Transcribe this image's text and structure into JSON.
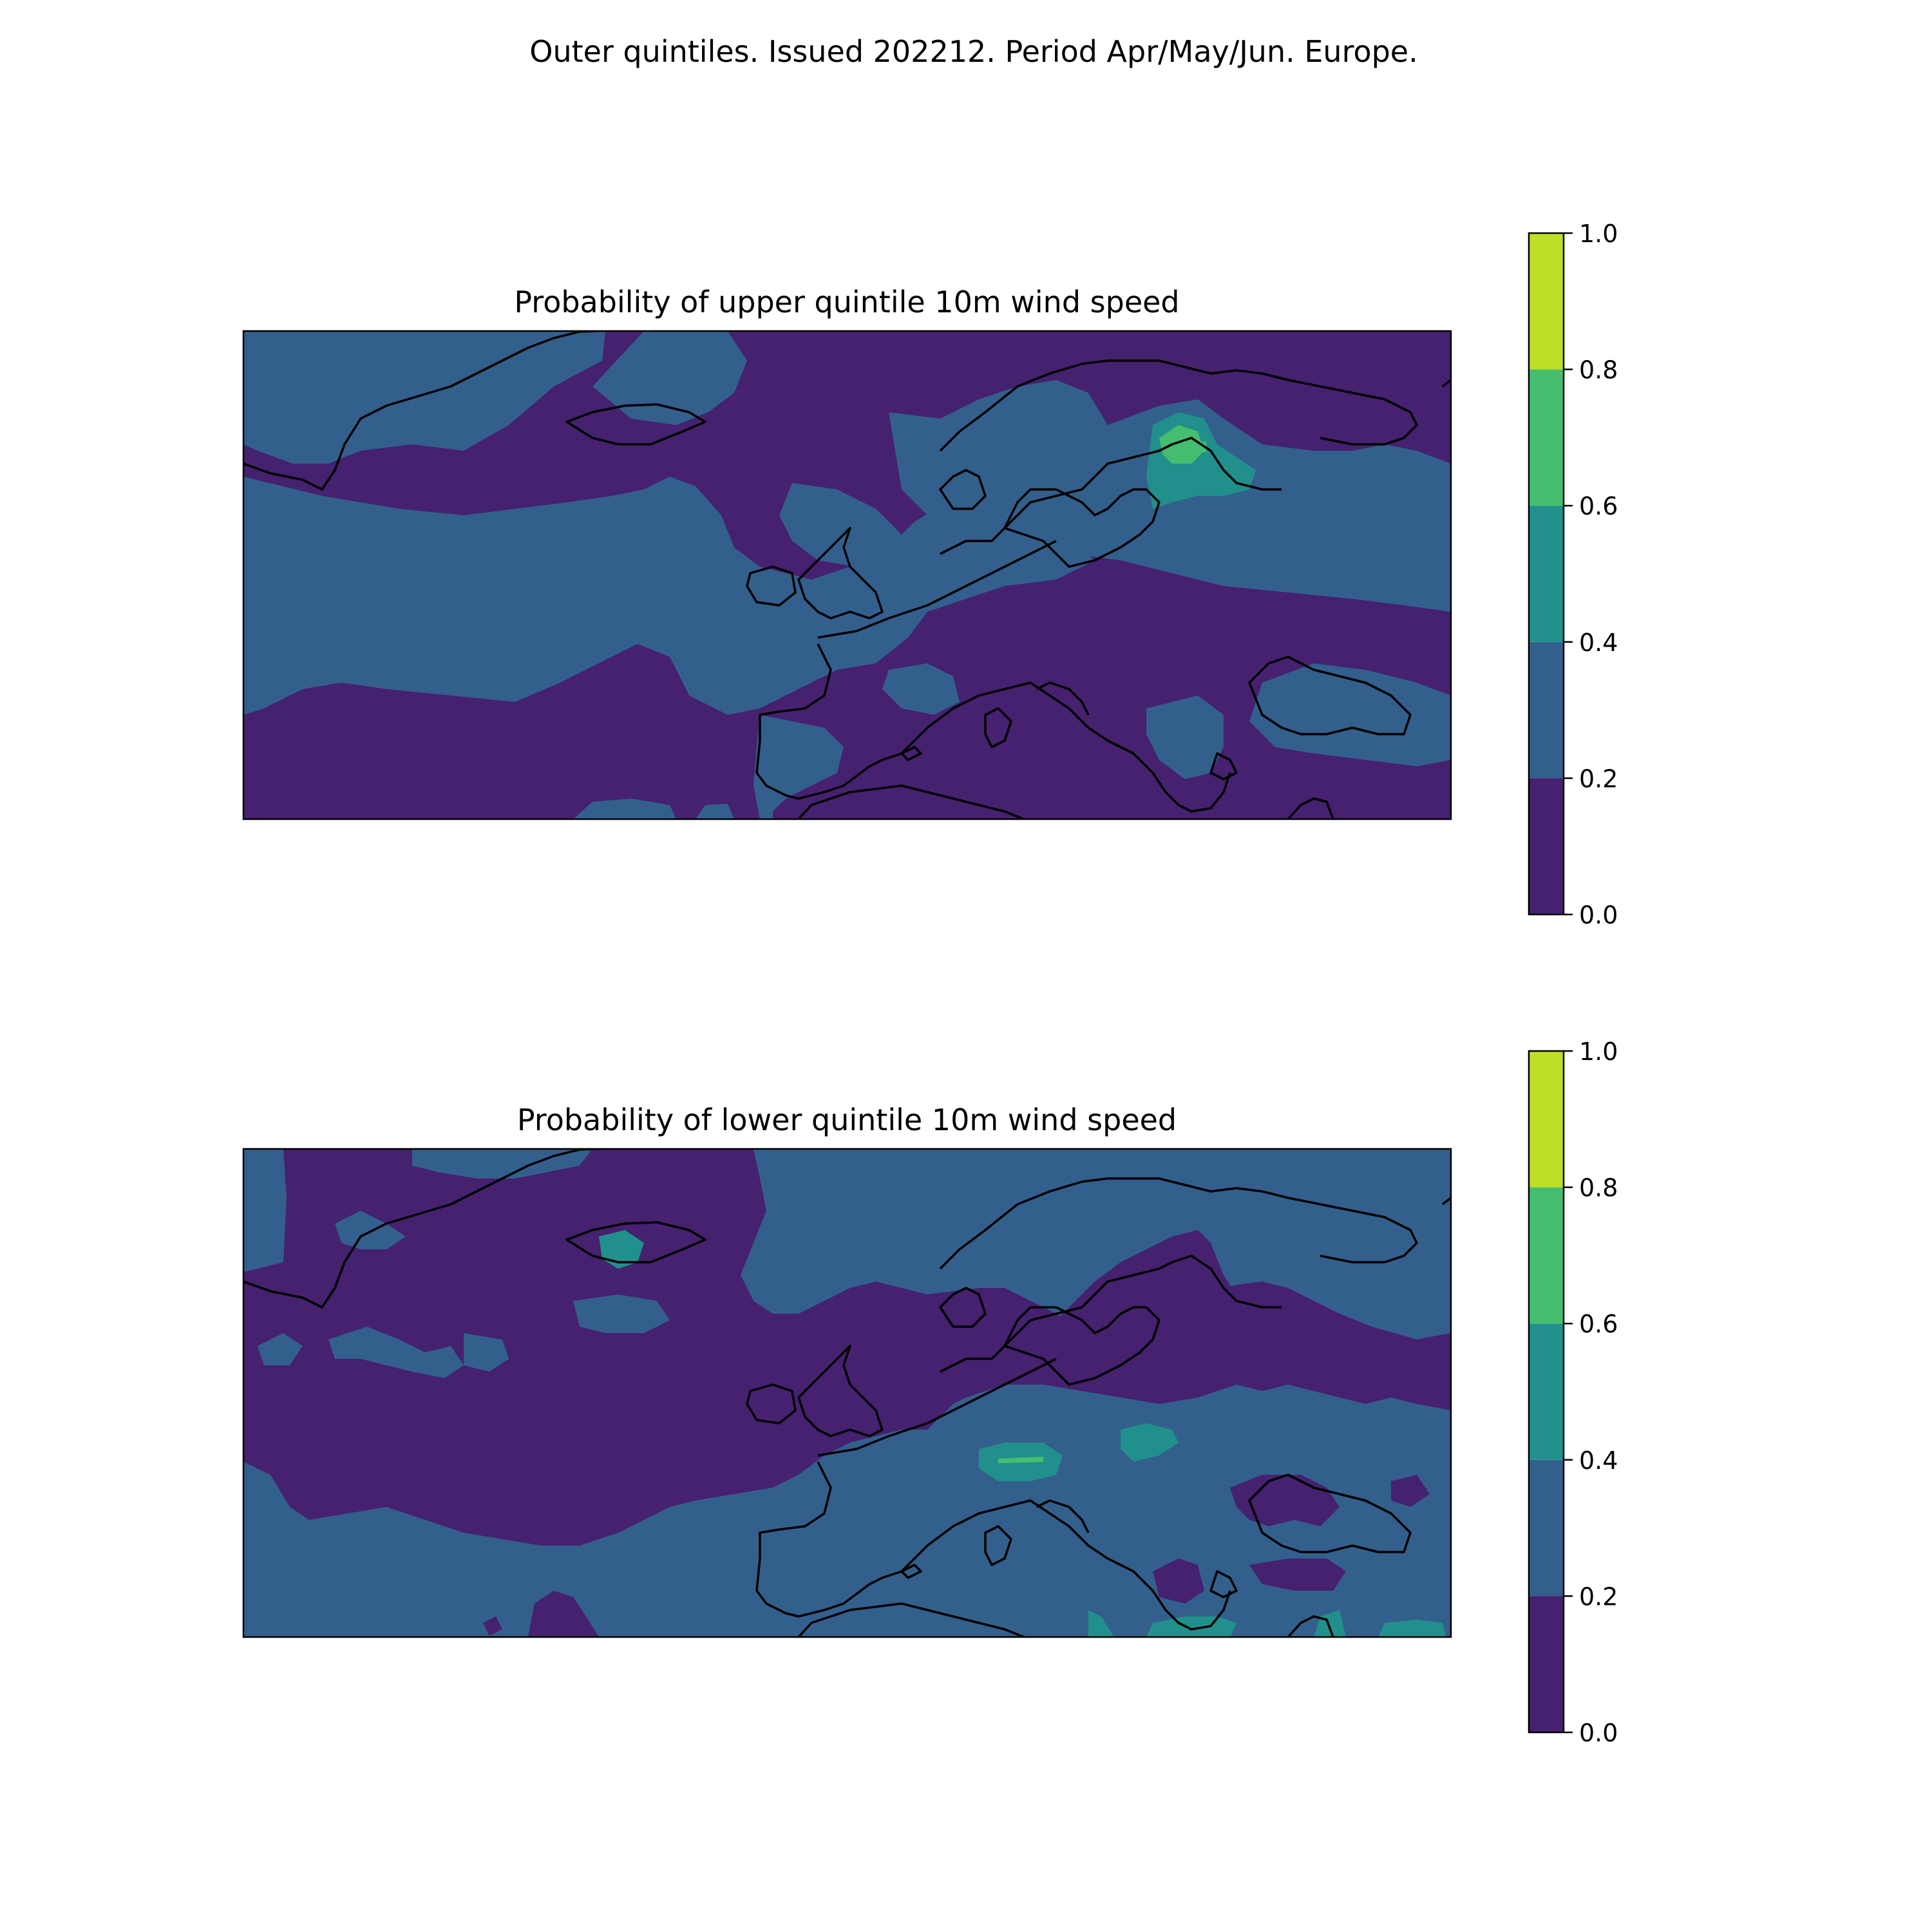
{
  "suptitle": "Outer quintiles. Issued 202212. Period Apr/May/Jun. Europe.",
  "colors": {
    "c0": "#45216f",
    "c1": "#335f8c",
    "c2": "#21908c",
    "c3": "#45bf6f",
    "c4": "#bddf26"
  },
  "colorbar": {
    "levels": [
      0.0,
      0.2,
      0.4,
      0.6,
      0.8,
      1.0
    ],
    "tick_labels": [
      "0.0",
      "0.2",
      "0.4",
      "0.6",
      "0.8",
      "1.0"
    ]
  },
  "chart_data": [
    {
      "type": "map",
      "title": "Probability of upper quintile 10m wind speed",
      "region": "Europe",
      "colorbar_range": [
        0.0,
        1.0
      ]
    },
    {
      "type": "map",
      "title": "Probability of lower quintile 10m wind speed",
      "region": "Europe",
      "colorbar_range": [
        0.0,
        1.0
      ]
    }
  ]
}
